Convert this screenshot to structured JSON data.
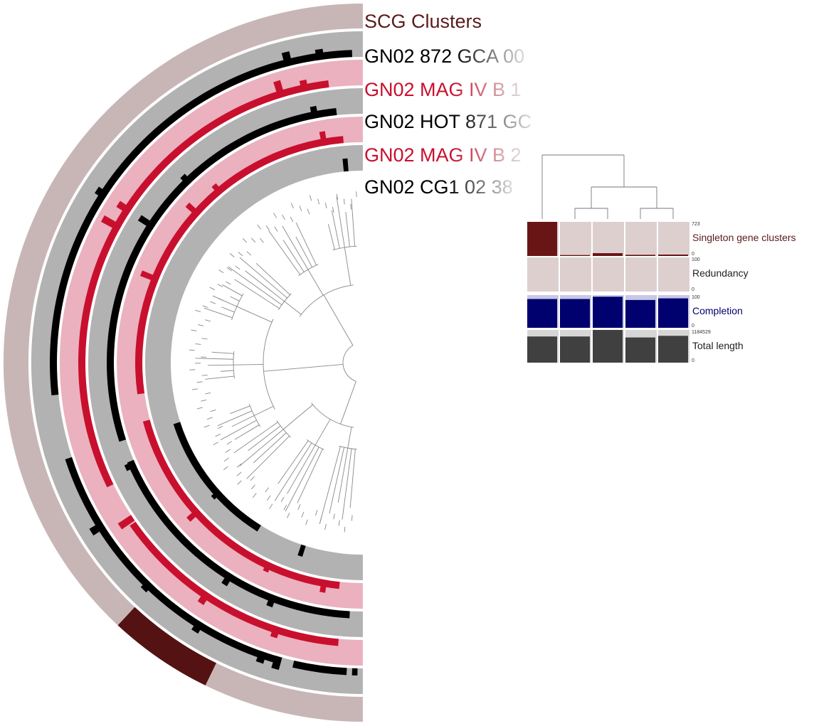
{
  "layers": [
    {
      "label": "SCG Clusters",
      "color": "#5a1a1a",
      "fade": false
    },
    {
      "label": "GN02 872 GCA 00",
      "color": "#000000",
      "fade": true
    },
    {
      "label": "GN02 MAG IV B 1",
      "color": "#c8102e",
      "fade": true
    },
    {
      "label": "GN02 HOT 871 GC",
      "color": "#000000",
      "fade": true
    },
    {
      "label": "GN02 MAG IV B 2",
      "color": "#c8102e",
      "fade": true
    },
    {
      "label": "GN02 CG1 02 38",
      "color": "#000000",
      "fade": true
    }
  ],
  "bar_panels": [
    {
      "label": "Singleton gene clusters",
      "max": "723",
      "min": "0",
      "color": "#6a1515",
      "bg": "#decfcf",
      "label_color": "#5a1a1a",
      "values": [
        723,
        20,
        60,
        25,
        30
      ]
    },
    {
      "label": "Redundancy",
      "max": "100",
      "min": "0",
      "color": "#c9bcbc",
      "bg": "#decfcf",
      "label_color": "#222222",
      "values": [
        0,
        0,
        0,
        0,
        0
      ]
    },
    {
      "label": "Completion",
      "max": "100",
      "min": "0",
      "color": "#00006e",
      "bg": "#c8c8e6",
      "label_color": "#00006e",
      "values": [
        88,
        88,
        95,
        85,
        90
      ]
    },
    {
      "label": "Total length",
      "max": "1184529",
      "min": "0",
      "color": "#404040",
      "bg": "#d6d6d6",
      "label_color": "#222222",
      "values": [
        80,
        80,
        100,
        77,
        82
      ]
    }
  ],
  "colors": {
    "scg_bg": "#c8b6b6",
    "scg_fill": "#541212",
    "gray_bg": "#b2b2b2",
    "black_fill": "#000000",
    "pink_bg": "#ebb1be",
    "red_fill": "#c8102e"
  }
}
